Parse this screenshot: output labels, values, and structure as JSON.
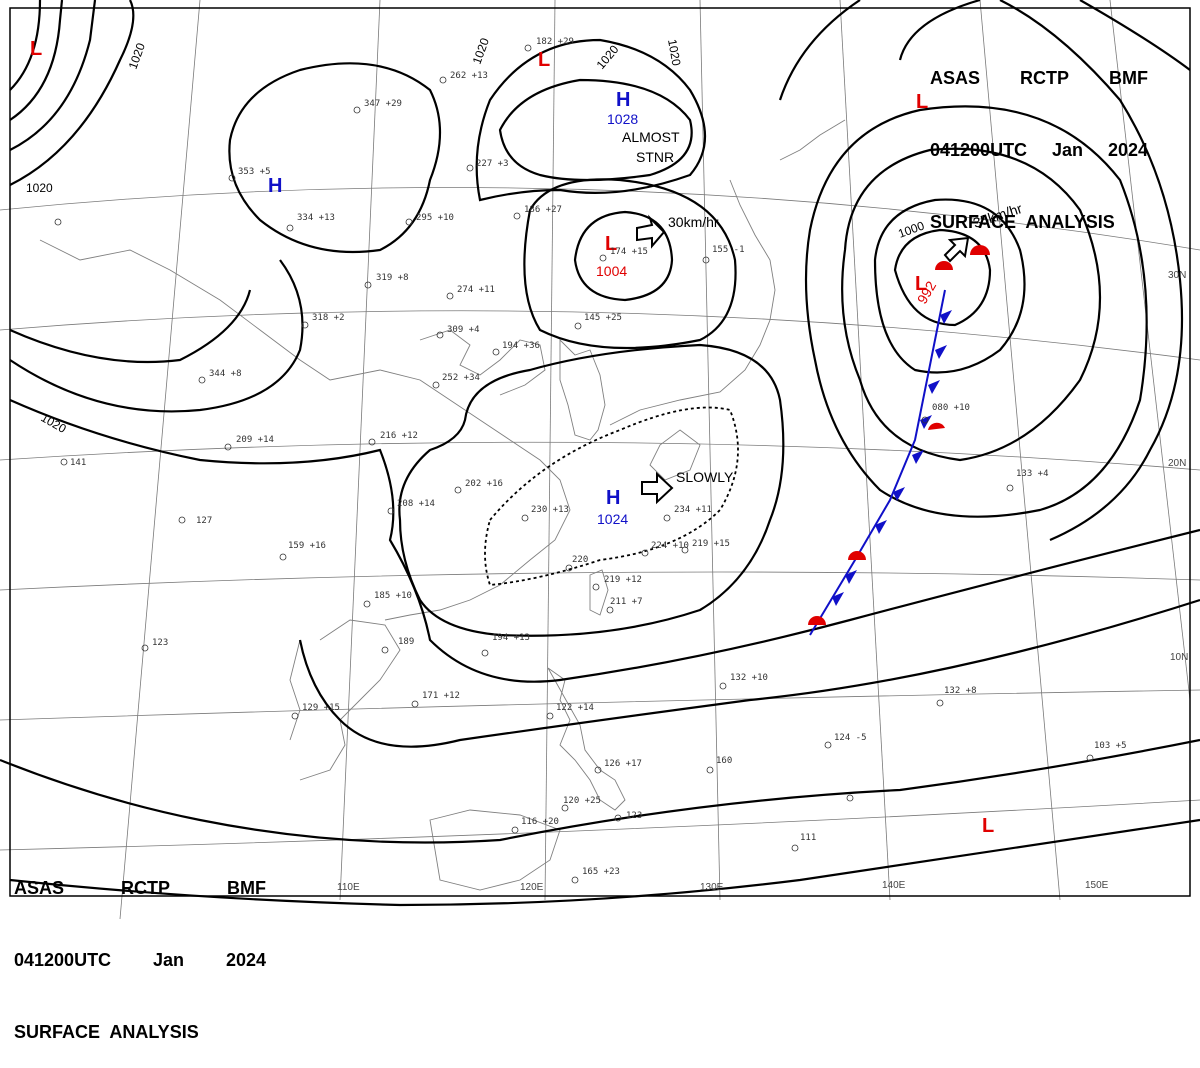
{
  "header": {
    "line1": [
      "ASAS",
      "RCTP",
      "BMF"
    ],
    "line2": [
      "041200UTC",
      "Jan",
      "2024"
    ],
    "line3": "SURFACE  ANALYSIS"
  },
  "pressure_systems": [
    {
      "type": "H",
      "pressure": "1028"
    },
    {
      "type": "H",
      "pressure": ""
    },
    {
      "type": "H",
      "pressure": "1024"
    },
    {
      "type": "L",
      "pressure": "1004"
    },
    {
      "type": "L",
      "pressure": "992"
    },
    {
      "type": "L",
      "pressure": ""
    },
    {
      "type": "L",
      "pressure": ""
    },
    {
      "type": "L",
      "pressure": ""
    },
    {
      "type": "L",
      "pressure": ""
    }
  ],
  "motion_labels": {
    "high_north": "ALMOST",
    "high_north_2": "STNR",
    "low_center": "30km/hr",
    "low_east": "35km/hr",
    "high_south": "SLOWLY"
  },
  "isobar_labels": [
    "1020",
    "1020",
    "1020",
    "1020",
    "1020",
    "1020",
    "1000"
  ],
  "lat_labels": [
    "30N",
    "20N",
    "10N"
  ],
  "lon_labels": [
    "110E",
    "120E",
    "130E",
    "140E",
    "150E"
  ],
  "stations": [
    "182 +29",
    "262 +13",
    "347 +29",
    "227 +3",
    "186 +27",
    "174 +15",
    "155 -1",
    "295 +10",
    "319 +8",
    "274 +11",
    "309 +4",
    "145 +25",
    "194 +36",
    "344 +8",
    "252 +34",
    "216 +12",
    "209 +14",
    "202 +16",
    "208 +14",
    "230 +13",
    "234 +11",
    "224 +10",
    "219 +15",
    "220",
    "219 +12",
    "211 +7",
    "185 +10",
    "189",
    "194 +13",
    "171 +12",
    "129 +15",
    "122 +14",
    "132 +10",
    "132 +8",
    "124 -5",
    "103 +5",
    "160",
    "126 +17",
    "120 +25",
    "116 +20",
    "123",
    "111",
    "165 +23",
    "133 +4",
    "080 +10",
    "127",
    "123",
    "141",
    "159 +16",
    "353 +5",
    "334 +13",
    "318 +2"
  ]
}
